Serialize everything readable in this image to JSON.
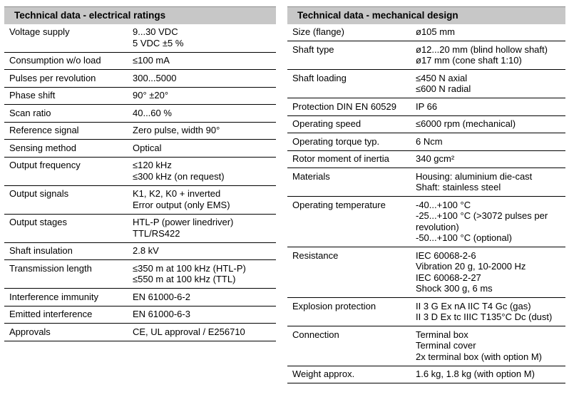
{
  "colors": {
    "header_bg": "#c7c7c7",
    "rule": "#000000",
    "text": "#000000",
    "page_bg": "#ffffff"
  },
  "tables": [
    {
      "id": "electrical-ratings",
      "title": "Technical data - electrical ratings",
      "rows": [
        {
          "label": "Voltage supply",
          "values": [
            "9...30 VDC",
            "5 VDC ±5 %"
          ]
        },
        {
          "label": "Consumption w/o load",
          "values": [
            "≤100 mA"
          ]
        },
        {
          "label": "Pulses per revolution",
          "values": [
            "300...5000"
          ]
        },
        {
          "label": "Phase shift",
          "values": [
            "90° ±20°"
          ]
        },
        {
          "label": "Scan ratio",
          "values": [
            "40...60 %"
          ]
        },
        {
          "label": "Reference signal",
          "values": [
            "Zero pulse, width 90°"
          ]
        },
        {
          "label": "Sensing method",
          "values": [
            "Optical"
          ]
        },
        {
          "label": "Output frequency",
          "values": [
            "≤120 kHz",
            "≤300 kHz (on request)"
          ]
        },
        {
          "label": "Output signals",
          "values": [
            "K1, K2, K0 + inverted",
            "Error output (only EMS)"
          ]
        },
        {
          "label": "Output stages",
          "values": [
            "HTL-P (power linedriver)",
            "TTL/RS422"
          ]
        },
        {
          "label": "Shaft insulation",
          "values": [
            "2.8 kV"
          ]
        },
        {
          "label": "Transmission length",
          "values": [
            "≤350 m at 100 kHz (HTL-P)",
            "≤550 m at 100 kHz (TTL)"
          ]
        },
        {
          "label": "Interference immunity",
          "values": [
            "EN 61000-6-2"
          ]
        },
        {
          "label": "Emitted interference",
          "values": [
            "EN 61000-6-3"
          ]
        },
        {
          "label": "Approvals",
          "values": [
            "CE, UL approval / E256710"
          ]
        }
      ]
    },
    {
      "id": "mechanical-design",
      "title": "Technical data - mechanical design",
      "rows": [
        {
          "label": "Size (flange)",
          "values": [
            "ø105 mm"
          ]
        },
        {
          "label": "Shaft type",
          "values": [
            "ø12...20 mm (blind hollow shaft)",
            "ø17 mm (cone shaft 1:10)"
          ]
        },
        {
          "label": "Shaft loading",
          "values": [
            "≤450 N axial",
            "≤600 N radial"
          ]
        },
        {
          "label": "Protection DIN EN 60529",
          "values": [
            "IP 66"
          ]
        },
        {
          "label": "Operating speed",
          "values": [
            "≤6000 rpm (mechanical)"
          ]
        },
        {
          "label": "Operating torque typ.",
          "values": [
            "6 Ncm"
          ]
        },
        {
          "label": "Rotor moment of inertia",
          "values": [
            "340 gcm²"
          ]
        },
        {
          "label": "Materials",
          "values": [
            "Housing: aluminium die-cast",
            "Shaft: stainless steel"
          ]
        },
        {
          "label": "Operating temperature",
          "values": [
            "-40...+100 °C",
            "-25...+100 °C (>3072 pulses per revolution)",
            "-50...+100 °C (optional)"
          ]
        },
        {
          "label": "Resistance",
          "values": [
            "IEC 60068-2-6",
            "Vibration 20 g, 10-2000 Hz",
            "IEC 60068-2-27",
            "Shock 300 g, 6 ms"
          ]
        },
        {
          "label": "Explosion protection",
          "values": [
            "II 3 G Ex nA IIC T4 Gc (gas)",
            "II 3 D Ex tc IIIC T135°C Dc (dust)"
          ]
        },
        {
          "label": "Connection",
          "values": [
            "Terminal box",
            "Terminal cover",
            "2x terminal box (with option M)"
          ]
        },
        {
          "label": "Weight approx.",
          "values": [
            "1.6 kg, 1.8 kg (with option M)"
          ]
        }
      ]
    }
  ]
}
